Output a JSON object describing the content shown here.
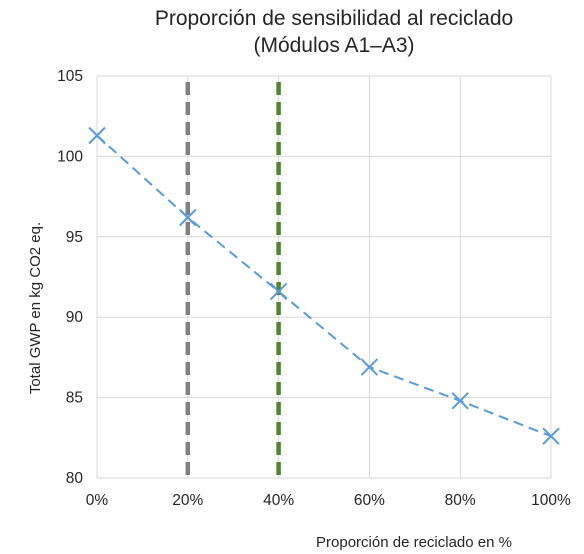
{
  "chart_data": {
    "type": "line",
    "title_lines": [
      "Proporción de sensibilidad al reciclado",
      "(Módulos A1–A3)"
    ],
    "xlabel": "Proporción de reciclado en %",
    "ylabel": "Total GWP en kg CO2 eq.",
    "x_tick_labels": [
      "0%",
      "20%",
      "40%",
      "60%",
      "80%",
      "100%"
    ],
    "y_tick_labels": [
      "80",
      "85",
      "90",
      "95",
      "100",
      "105"
    ],
    "x": [
      0,
      20,
      40,
      60,
      80,
      100
    ],
    "xlim": [
      0,
      100
    ],
    "ylim": [
      80,
      105
    ],
    "y_ticks": [
      80,
      85,
      90,
      95,
      100,
      105
    ],
    "grid": true,
    "legend": "none",
    "series": [
      {
        "values": [
          101.3,
          96.2,
          91.6,
          86.9,
          84.8,
          82.6
        ],
        "color": "#5b9bd5",
        "line_style": "dashed",
        "marker": "x"
      }
    ],
    "reference_lines": [
      {
        "x": 20,
        "color": "#808080",
        "line_style": "dashed"
      },
      {
        "x": 40,
        "color": "#548235",
        "line_style": "dashed"
      }
    ]
  }
}
